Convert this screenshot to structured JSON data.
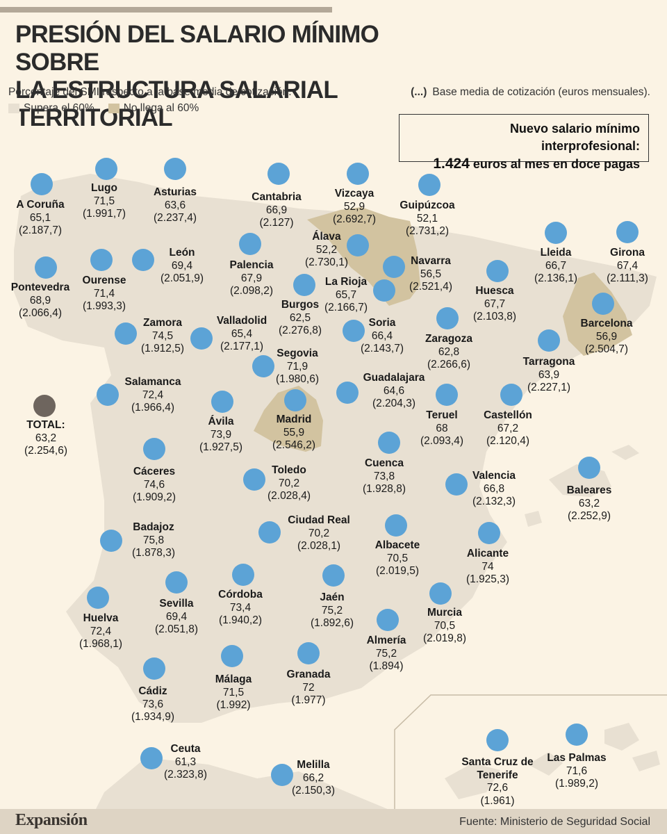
{
  "title_line1": "PRESIÓN DEL SALARIO MÍNIMO SOBRE",
  "title_line2": "LA ESTRUCTURA SALARIAL TERRITORIAL",
  "subtitle": "Porcentaje del SMI respecto a la base media de cotización.",
  "legend": [
    {
      "label": "Supera el 60%",
      "color": "#e8e0d2"
    },
    {
      "label": "No llega al 60%",
      "color": "#d2c3a0"
    }
  ],
  "note_marker": "(...)",
  "note_text": "Base media de cotización (euros mensuales).",
  "smi_box_line1": "Nuevo salario mínimo interprofesional:",
  "smi_box_line2_bold": "1.424",
  "smi_box_line2_rest": " euros al mes en doce pagas",
  "colors": {
    "marker": "#5ca3d6",
    "total_marker": "#6e655e",
    "land": "#e8e0d2",
    "below_60": "#d2c3a0",
    "background": "#fbf3e4"
  },
  "total": {
    "name": "TOTAL:",
    "pct": "63,2",
    "base": "(2.254,6)"
  },
  "provinces": [
    {
      "name": "A Coruña",
      "pct": "65,1",
      "base": "(2.187,7)"
    },
    {
      "name": "Lugo",
      "pct": "71,5",
      "base": "(1.991,7)"
    },
    {
      "name": "Asturias",
      "pct": "63,6",
      "base": "(2.237,4)"
    },
    {
      "name": "Cantabria",
      "pct": "66,9",
      "base": "(2.127)"
    },
    {
      "name": "Vizcaya",
      "pct": "52,9",
      "base": "(2.692,7)"
    },
    {
      "name": "Guipúzcoa",
      "pct": "52,1",
      "base": "(2.731,2)"
    },
    {
      "name": "Álava",
      "pct": "52,2",
      "base": "(2.730,1)"
    },
    {
      "name": "Navarra",
      "pct": "56,5",
      "base": "(2.521,4)"
    },
    {
      "name": "La Rioja",
      "pct": "65,7",
      "base": "(2.166,7)"
    },
    {
      "name": "Lleida",
      "pct": "66,7",
      "base": "(2.136,1)"
    },
    {
      "name": "Girona",
      "pct": "67,4",
      "base": "(2.111,3)"
    },
    {
      "name": "Pontevedra",
      "pct": "68,9",
      "base": "(2.066,4)"
    },
    {
      "name": "Ourense",
      "pct": "71,4",
      "base": "(1.993,3)"
    },
    {
      "name": "León",
      "pct": "69,4",
      "base": "(2.051,9)"
    },
    {
      "name": "Palencia",
      "pct": "67,9",
      "base": "(2.098,2)"
    },
    {
      "name": "Burgos",
      "pct": "62,5",
      "base": "(2.276,8)"
    },
    {
      "name": "Huesca",
      "pct": "67,7",
      "base": "(2.103,8)"
    },
    {
      "name": "Barcelona",
      "pct": "56,9",
      "base": "(2.504,7)"
    },
    {
      "name": "Zamora",
      "pct": "74,5",
      "base": "(1.912,5)"
    },
    {
      "name": "Valladolid",
      "pct": "65,4",
      "base": "(2.177,1)"
    },
    {
      "name": "Soria",
      "pct": "66,4",
      "base": "(2.143,7)"
    },
    {
      "name": "Zaragoza",
      "pct": "62,8",
      "base": "(2.266,6)"
    },
    {
      "name": "Tarragona",
      "pct": "63,9",
      "base": "(2.227,1)"
    },
    {
      "name": "Segovia",
      "pct": "71,9",
      "base": "(1.980,6)"
    },
    {
      "name": "Salamanca",
      "pct": "72,4",
      "base": "(1.966,4)"
    },
    {
      "name": "Guadalajara",
      "pct": "64,6",
      "base": "(2.204,3)"
    },
    {
      "name": "Ávila",
      "pct": "73,9",
      "base": "(1.927,5)"
    },
    {
      "name": "Madrid",
      "pct": "55,9",
      "base": "(2.546,2)"
    },
    {
      "name": "Teruel",
      "pct": "68",
      "base": "(2.093,4)"
    },
    {
      "name": "Castellón",
      "pct": "67,2",
      "base": "(2.120,4)"
    },
    {
      "name": "Cáceres",
      "pct": "74,6",
      "base": "(1.909,2)"
    },
    {
      "name": "Toledo",
      "pct": "70,2",
      "base": "(2.028,4)"
    },
    {
      "name": "Cuenca",
      "pct": "73,8",
      "base": "(1.928,8)"
    },
    {
      "name": "Valencia",
      "pct": "66,8",
      "base": "(2.132,3)"
    },
    {
      "name": "Baleares",
      "pct": "63,2",
      "base": "(2.252,9)"
    },
    {
      "name": "Badajoz",
      "pct": "75,8",
      "base": "(1.878,3)"
    },
    {
      "name": "Ciudad Real",
      "pct": "70,2",
      "base": "(2.028,1)"
    },
    {
      "name": "Albacete",
      "pct": "70,5",
      "base": "(2.019,5)"
    },
    {
      "name": "Alicante",
      "pct": "74",
      "base": "(1.925,3)"
    },
    {
      "name": "Sevilla",
      "pct": "69,4",
      "base": "(2.051,8)"
    },
    {
      "name": "Córdoba",
      "pct": "73,4",
      "base": "(1.940,2)"
    },
    {
      "name": "Jaén",
      "pct": "75,2",
      "base": "(1.892,6)"
    },
    {
      "name": "Murcia",
      "pct": "70,5",
      "base": "(2.019,8)"
    },
    {
      "name": "Huelva",
      "pct": "72,4",
      "base": "(1.968,1)"
    },
    {
      "name": "Almería",
      "pct": "75,2",
      "base": "(1.894)"
    },
    {
      "name": "Cádiz",
      "pct": "73,6",
      "base": "(1.934,9)"
    },
    {
      "name": "Málaga",
      "pct": "71,5",
      "base": "(1.992)"
    },
    {
      "name": "Granada",
      "pct": "72",
      "base": "(1.977)"
    },
    {
      "name": "Ceuta",
      "pct": "61,3",
      "base": "(2.323,8)"
    },
    {
      "name": "Melilla",
      "pct": "66,2",
      "base": "(2.150,3)"
    },
    {
      "name": "Santa Cruz de Tenerife",
      "pct": "72,6",
      "base": "(1.961)"
    },
    {
      "name": "Las Palmas",
      "pct": "71,6",
      "base": "(1.989,2)"
    }
  ],
  "brand": "Expansión",
  "source": "Fuente: Ministerio de Seguridad Social"
}
